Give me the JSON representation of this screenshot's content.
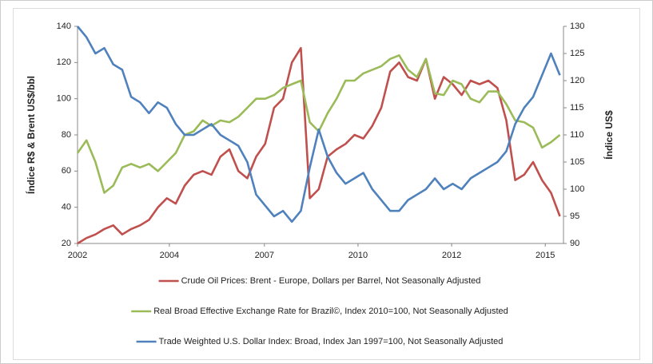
{
  "chart_data": {
    "type": "line",
    "ylabel": "Índice R$ & Brent US$/bbl",
    "y2label": "Índice US$",
    "x": [
      2002,
      2002.25,
      2002.5,
      2002.75,
      2003,
      2003.25,
      2003.5,
      2003.75,
      2004,
      2004.25,
      2004.5,
      2004.75,
      2005,
      2005.25,
      2005.5,
      2005.75,
      2006,
      2006.25,
      2006.5,
      2006.75,
      2007,
      2007.25,
      2007.5,
      2007.75,
      2008,
      2008.25,
      2008.5,
      2008.75,
      2009,
      2009.25,
      2009.5,
      2009.75,
      2010,
      2010.25,
      2010.5,
      2010.75,
      2011,
      2011.25,
      2011.5,
      2011.75,
      2012,
      2012.25,
      2012.5,
      2012.75,
      2013,
      2013.25,
      2013.5,
      2013.75,
      2014,
      2014.25,
      2014.5,
      2014.75,
      2015,
      2015.25,
      2015.5
    ],
    "xlim": [
      2002,
      2015.6
    ],
    "xticks": [
      {
        "value": 2002,
        "label": "2002"
      },
      {
        "value": 2004.57,
        "label": "2004"
      },
      {
        "value": 2007.23,
        "label": "2007"
      },
      {
        "value": 2009.85,
        "label": "2010"
      },
      {
        "value": 2012.47,
        "label": "2012"
      },
      {
        "value": 2015.09,
        "label": "2015"
      }
    ],
    "ylim": [
      20,
      140
    ],
    "yticks": [
      20,
      40,
      60,
      80,
      100,
      120,
      140
    ],
    "y2lim": [
      90,
      130
    ],
    "y2ticks": [
      90,
      95,
      100,
      105,
      110,
      115,
      120,
      125,
      130
    ],
    "series": [
      {
        "name": "Crude Oil Prices: Brent - Europe, Dollars per Barrel, Not Seasonally Adjusted",
        "color": "#c0504d",
        "values": [
          20,
          23,
          25,
          28,
          30,
          25,
          28,
          30,
          33,
          40,
          45,
          42,
          52,
          58,
          60,
          58,
          68,
          72,
          60,
          56,
          68,
          75,
          95,
          100,
          120,
          128,
          45,
          50,
          68,
          72,
          75,
          80,
          78,
          85,
          95,
          115,
          120,
          112,
          110,
          122,
          100,
          112,
          108,
          102,
          110,
          108,
          110,
          106,
          88,
          55,
          58,
          65,
          55,
          48,
          35
        ]
      },
      {
        "name": "Real Broad Effective Exchange Rate for Brazil©, Index 2010=100, Not Seasonally Adjusted",
        "color": "#9bbb59",
        "values": [
          70,
          77,
          65,
          48,
          52,
          62,
          64,
          62,
          64,
          60,
          65,
          70,
          80,
          82,
          88,
          85,
          88,
          87,
          90,
          95,
          100,
          100,
          102,
          106,
          108,
          110,
          87,
          82,
          92,
          100,
          110,
          110,
          114,
          116,
          118,
          122,
          124,
          116,
          112,
          122,
          103,
          102,
          110,
          108,
          100,
          98,
          104,
          104,
          97,
          88,
          87,
          84,
          73,
          76,
          80
        ]
      },
      {
        "name": "Trade Weighted U.S. Dollar Index: Broad, Index Jan 1997=100, Not Seasonally Adjusted",
        "color": "#4f81bd",
        "axis": "y2",
        "values": [
          130,
          128,
          125,
          126,
          123,
          122,
          117,
          116,
          114,
          116,
          115,
          112,
          110,
          110,
          111,
          112,
          110,
          109,
          108,
          105,
          99,
          97,
          95,
          96,
          94,
          96,
          104,
          111,
          106,
          103,
          101,
          102,
          103,
          100,
          98,
          96,
          96,
          98,
          99,
          100,
          102,
          100,
          101,
          100,
          102,
          103,
          104,
          105,
          107,
          112,
          115,
          117,
          121,
          125,
          121
        ]
      }
    ]
  }
}
